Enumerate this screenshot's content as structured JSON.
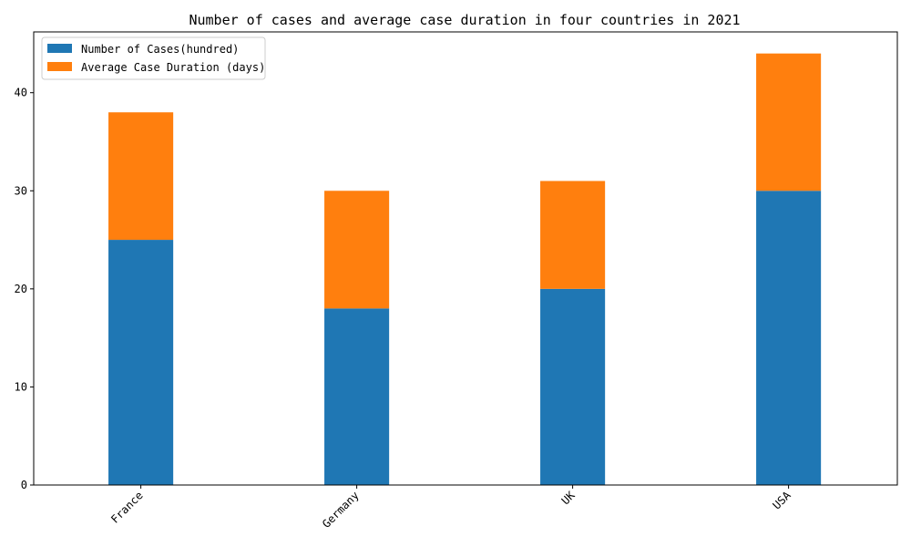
{
  "chart_data": {
    "type": "bar",
    "stacked": true,
    "title": "Number of cases and average case duration in four countries in 2021",
    "xlabel": "",
    "ylabel": "",
    "categories": [
      "France",
      "Germany",
      "UK",
      "USA"
    ],
    "series": [
      {
        "name": "Number of Cases(hundred)",
        "values": [
          25,
          18,
          20,
          30
        ],
        "color": "#1f77b4"
      },
      {
        "name": "Average Case Duration (days)",
        "values": [
          13,
          12,
          11,
          14
        ],
        "color": "#ff7f0e"
      }
    ],
    "ylim": [
      0,
      46.2
    ],
    "yticks": [
      0,
      10,
      20,
      30,
      40
    ],
    "grid": false,
    "legend_position": "top-left"
  }
}
